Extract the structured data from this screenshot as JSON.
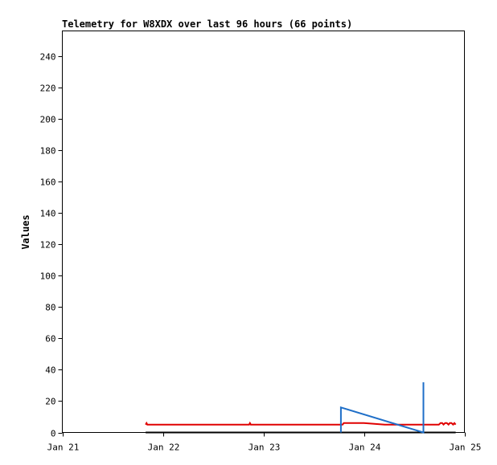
{
  "chart_data": {
    "type": "line",
    "title": "Telemetry for W8XDX over last 96 hours (66 points)",
    "xlabel": "",
    "ylabel": "Values",
    "xlim": [
      0,
      96
    ],
    "ylim": [
      0,
      256
    ],
    "x_ticks": [
      {
        "label": "Jan 21",
        "x": 0
      },
      {
        "label": "Jan 22",
        "x": 24
      },
      {
        "label": "Jan 23",
        "x": 48
      },
      {
        "label": "Jan 24",
        "x": 72
      },
      {
        "label": "Jan 25",
        "x": 96
      }
    ],
    "y_ticks": [
      0,
      20,
      40,
      60,
      80,
      100,
      120,
      140,
      160,
      180,
      200,
      220,
      240
    ],
    "grid": false,
    "series": [
      {
        "color": "#000000",
        "x": [
          19.9,
          93.9
        ],
        "y": [
          0,
          0
        ]
      },
      {
        "color": "#e00000",
        "x": [
          19.9,
          20.1,
          20.3,
          44.6,
          44.8,
          45.0,
          66.9,
          67.2,
          72.0,
          77.0,
          81.6,
          84.9,
          85.4,
          85.8,
          86.2,
          86.6,
          87.0,
          87.4,
          87.8,
          88.2,
          88.6,
          88.9,
          89.2,
          89.6,
          89.9,
          90.3,
          90.7,
          91.0,
          91.4,
          91.8,
          92.2,
          92.5,
          92.9,
          93.3,
          93.6,
          93.9
        ],
        "y": [
          5,
          6,
          5,
          5,
          6,
          5,
          5,
          6,
          6,
          5,
          5,
          5,
          5,
          5,
          5,
          5,
          5,
          5,
          5,
          5,
          5,
          5,
          5,
          5,
          5,
          6,
          6,
          5,
          6,
          6,
          5,
          6,
          6,
          5,
          6,
          5
        ]
      },
      {
        "color": "#1f6fc8",
        "x": [
          66.5,
          66.5,
          86.2,
          86.2,
          86.2
        ],
        "y": [
          0,
          16,
          0,
          32,
          5
        ]
      }
    ]
  }
}
